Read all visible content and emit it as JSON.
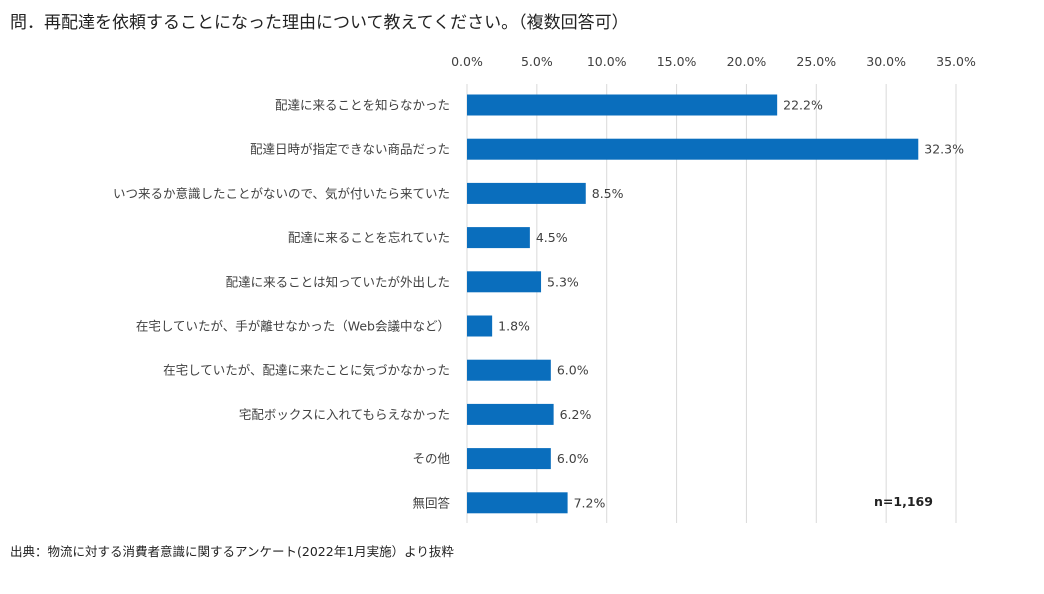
{
  "question": "問．再配達を依頼することになった理由について教えてください。（複数回答可）",
  "source": "出典：物流に対する消費者意識に関するアンケート(2022年1月実施）より抜粋",
  "sample_size": "n=1,169",
  "colors": {
    "bar": "#0a6ebd",
    "grid": "#d9d9d9",
    "text": "#404040"
  },
  "chart_data": {
    "type": "bar",
    "orientation": "horizontal",
    "title": "問．再配達を依頼することになった理由について教えてください。（複数回答可）",
    "xlim": [
      0,
      35
    ],
    "x_ticks": [
      0,
      5,
      10,
      15,
      20,
      25,
      30,
      35
    ],
    "x_tick_labels": [
      "0.0%",
      "5.0%",
      "10.0%",
      "15.0%",
      "20.0%",
      "25.0%",
      "30.0%",
      "35.0%"
    ],
    "x_axis_position": "top",
    "grid": true,
    "categories": [
      "配達に来ることを知らなかった",
      "配達日時が指定できない商品だった",
      "いつ来るか意識したことがないので、気が付いたら来ていた",
      "配達に来ることを忘れていた",
      "配達に来ることは知っていたが外出した",
      "在宅していたが、手が離せなかった（Web会議中など）",
      "在宅していたが、配達に来たことに気づかなかった",
      "宅配ボックスに入れてもらえなかった",
      "その他",
      "無回答"
    ],
    "values": [
      22.2,
      32.3,
      8.5,
      4.5,
      5.3,
      1.8,
      6.0,
      6.2,
      6.0,
      7.2
    ],
    "value_labels": [
      "22.2%",
      "32.3%",
      "8.5%",
      "4.5%",
      "5.3%",
      "1.8%",
      "6.0%",
      "6.2%",
      "6.0%",
      "7.2%"
    ]
  }
}
